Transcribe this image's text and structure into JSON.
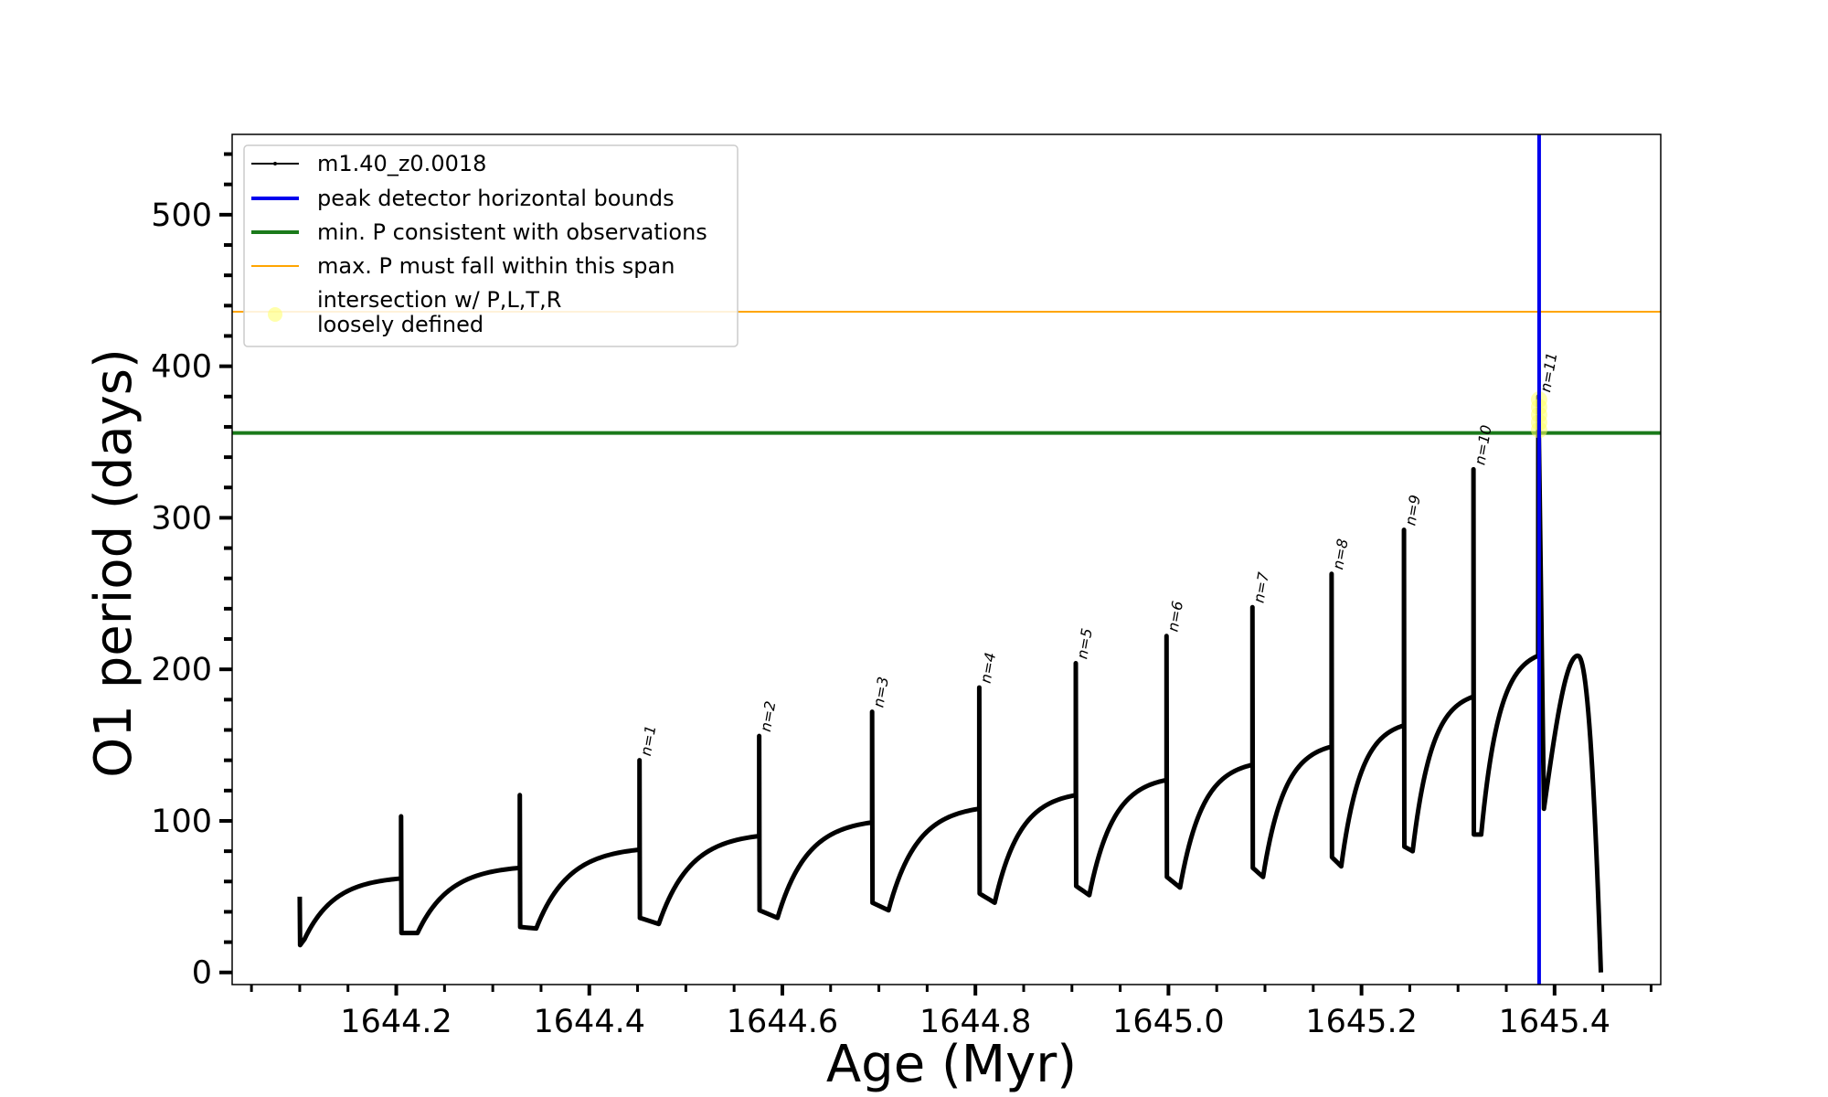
{
  "chart_data": {
    "type": "line",
    "title": "",
    "xlabel": "Age (Myr)",
    "ylabel": "O1 period (days)",
    "xlim": [
      1644.03,
      1645.51
    ],
    "ylim": [
      -8,
      553
    ],
    "x_ticks": [
      "1644.2",
      "1644.4",
      "1644.6",
      "1644.8",
      "1645.0",
      "1645.2",
      "1645.4"
    ],
    "y_ticks": [
      "0",
      "100",
      "200",
      "300",
      "400",
      "500"
    ],
    "grid": false,
    "legend_position": "top-left",
    "series": [
      {
        "name": "m1.40_z0.0018",
        "color": "#000000",
        "pulses": [
          {
            "t": 1644.1,
            "spike": 50,
            "base": 18,
            "dip": 22,
            "dip_t": 1644.105,
            "plateau": 62,
            "end": 1644.205
          },
          {
            "t": 1644.205,
            "spike": 103,
            "base": 26,
            "dip": 26,
            "dip_t": 1644.222,
            "plateau": 69,
            "end": 1644.328
          },
          {
            "t": 1644.328,
            "spike": 117,
            "base": 30,
            "dip": 29,
            "dip_t": 1644.345,
            "plateau": 81,
            "end": 1644.452
          },
          {
            "t": 1644.452,
            "spike": 140,
            "base": 36,
            "dip": 32,
            "dip_t": 1644.472,
            "plateau": 90,
            "end": 1644.576
          },
          {
            "t": 1644.576,
            "spike": 156,
            "base": 41,
            "dip": 36,
            "dip_t": 1644.595,
            "plateau": 99,
            "end": 1644.693
          },
          {
            "t": 1644.693,
            "spike": 172,
            "base": 46,
            "dip": 41,
            "dip_t": 1644.71,
            "plateau": 108,
            "end": 1644.804
          },
          {
            "t": 1644.804,
            "spike": 188,
            "base": 52,
            "dip": 46,
            "dip_t": 1644.82,
            "plateau": 117,
            "end": 1644.904
          },
          {
            "t": 1644.904,
            "spike": 204,
            "base": 57,
            "dip": 51,
            "dip_t": 1644.918,
            "plateau": 127,
            "end": 1644.998
          },
          {
            "t": 1644.998,
            "spike": 222,
            "base": 63,
            "dip": 56,
            "dip_t": 1645.012,
            "plateau": 137,
            "end": 1645.087
          },
          {
            "t": 1645.087,
            "spike": 241,
            "base": 69,
            "dip": 63,
            "dip_t": 1645.098,
            "plateau": 149,
            "end": 1645.169
          },
          {
            "t": 1645.169,
            "spike": 263,
            "base": 76,
            "dip": 70,
            "dip_t": 1645.179,
            "plateau": 163,
            "end": 1645.244
          },
          {
            "t": 1645.244,
            "spike": 292,
            "base": 83,
            "dip": 80,
            "dip_t": 1645.253,
            "plateau": 182,
            "end": 1645.316
          },
          {
            "t": 1645.316,
            "spike": 332,
            "base": 91,
            "dip": 91,
            "dip_t": 1645.324,
            "plateau": 209,
            "end": 1645.383
          }
        ],
        "final": {
          "t": 1645.383,
          "spike": 380,
          "dip": 108,
          "dip_t": 1645.389,
          "peak": 209,
          "peak_t": 1645.424,
          "end_t": 1645.448,
          "end_value": 0
        }
      },
      {
        "name": "peak detector horizontal bounds",
        "color": "#0000ee",
        "orientation": "vertical",
        "x": 1645.384
      },
      {
        "name": "min. P consistent with observations",
        "color": "#1a7a1a",
        "orientation": "horizontal",
        "y": 356
      },
      {
        "name": "max. P must fall within this span",
        "color": "#ffa500",
        "orientation": "horizontal",
        "y": 436
      },
      {
        "name": "intersection w/ P,L,T,R\nloosely defined",
        "color": "#ffff66",
        "type": "scatter",
        "points": [
          {
            "x": 1645.384,
            "y": 358
          },
          {
            "x": 1645.384,
            "y": 363
          },
          {
            "x": 1645.384,
            "y": 368
          },
          {
            "x": 1645.384,
            "y": 373
          },
          {
            "x": 1645.384,
            "y": 378
          }
        ]
      }
    ],
    "annotations": [
      {
        "text": "n=1",
        "x": 1644.452,
        "y": 140
      },
      {
        "text": "n=2",
        "x": 1644.576,
        "y": 156
      },
      {
        "text": "n=3",
        "x": 1644.693,
        "y": 172
      },
      {
        "text": "n=4",
        "x": 1644.804,
        "y": 188
      },
      {
        "text": "n=5",
        "x": 1644.904,
        "y": 204
      },
      {
        "text": "n=6",
        "x": 1644.998,
        "y": 222
      },
      {
        "text": "n=7",
        "x": 1645.087,
        "y": 241
      },
      {
        "text": "n=8",
        "x": 1645.169,
        "y": 263
      },
      {
        "text": "n=9",
        "x": 1645.244,
        "y": 292
      },
      {
        "text": "n=10",
        "x": 1645.316,
        "y": 332
      },
      {
        "text": "n=11",
        "x": 1645.384,
        "y": 380
      }
    ]
  }
}
